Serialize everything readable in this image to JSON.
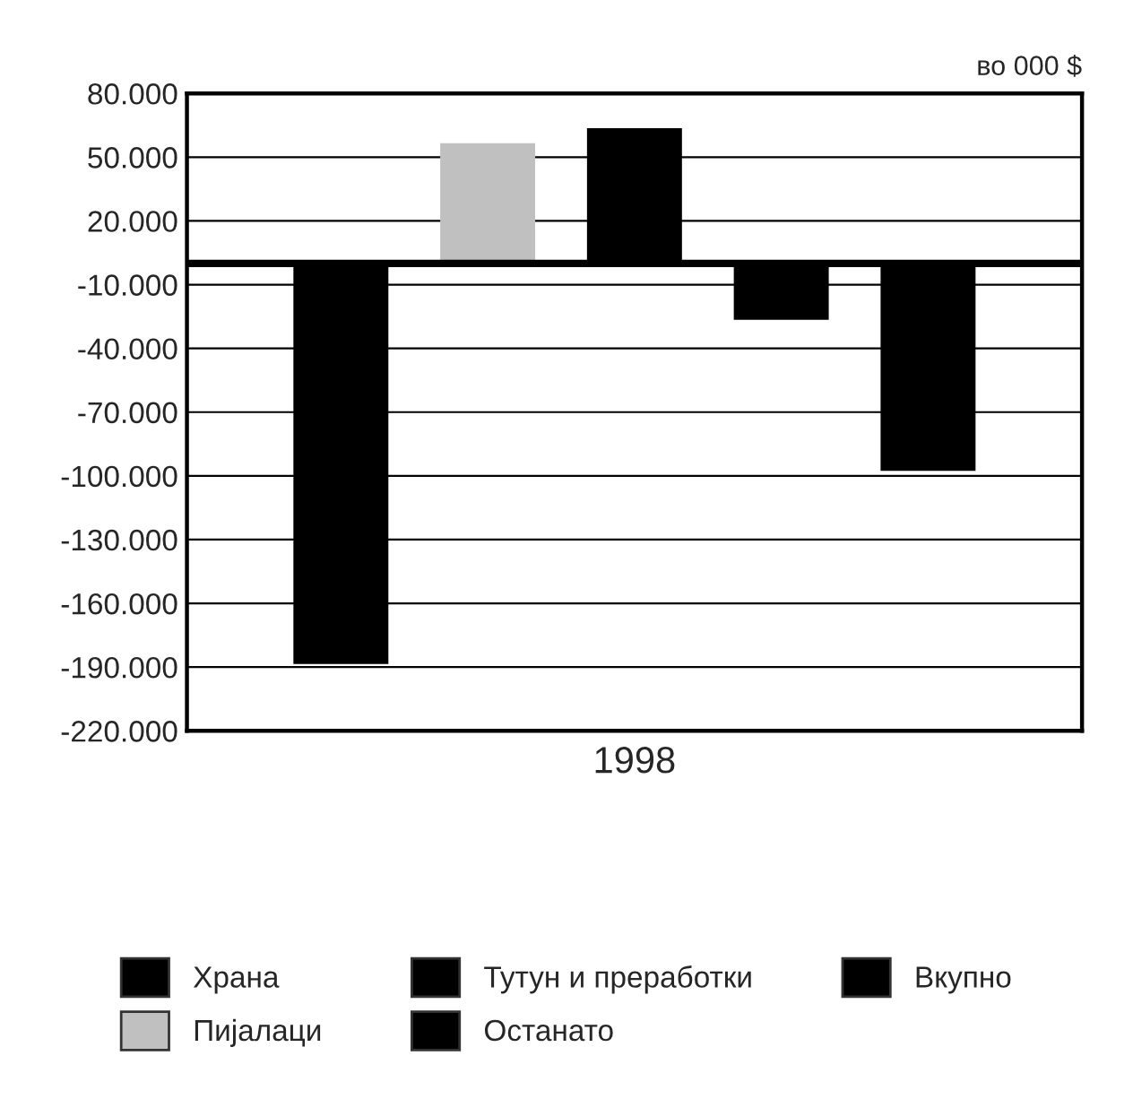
{
  "chart_data": {
    "type": "bar",
    "categories": [
      "1998"
    ],
    "series": [
      {
        "name": "Храна",
        "color": "#000000",
        "values": [
          -188000
        ]
      },
      {
        "name": "Пијалаци",
        "color": "#c0c0c0",
        "values": [
          56000
        ]
      },
      {
        "name": "Тутун и преработки",
        "color": "#000000",
        "values": [
          63000
        ]
      },
      {
        "name": "Останато",
        "color": "#000000",
        "values": [
          -26000
        ]
      },
      {
        "name": "Вкупно",
        "color": "#000000",
        "values": [
          -97000
        ]
      }
    ],
    "ylim": [
      -220000,
      80000
    ],
    "yticks": [
      {
        "value": 80000,
        "label": "80.000"
      },
      {
        "value": 50000,
        "label": "50.000"
      },
      {
        "value": 20000,
        "label": "20.000"
      },
      {
        "value": -10000,
        "label": "-10.000"
      },
      {
        "value": -40000,
        "label": "-40.000"
      },
      {
        "value": -70000,
        "label": "-70.000"
      },
      {
        "value": -100000,
        "label": "-100.000"
      },
      {
        "value": -130000,
        "label": "-130.000"
      },
      {
        "value": -160000,
        "label": "-160.000"
      },
      {
        "value": -190000,
        "label": "-190.000"
      },
      {
        "value": -220000,
        "label": "-220.000"
      }
    ],
    "ref_lines": [
      {
        "axis": "y",
        "value": 0
      }
    ],
    "annotations": [
      "во 000 $"
    ],
    "grid": "y",
    "legend": "bottom"
  }
}
